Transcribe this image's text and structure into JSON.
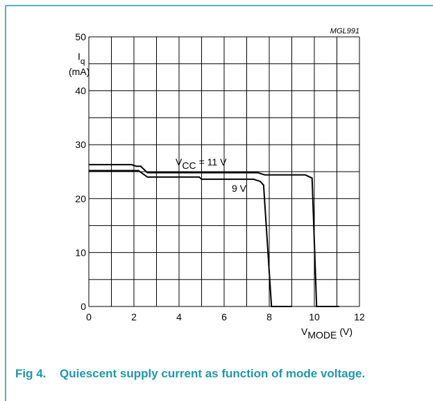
{
  "chart_data": {
    "type": "line",
    "id_label": "MGL991",
    "ylabel": {
      "symbol": "I",
      "subscript": "q",
      "unit": "(mA)"
    },
    "xlabel": {
      "symbol": "V",
      "subscript": "MODE",
      "unit": "(V)"
    },
    "xlim": [
      0,
      12
    ],
    "xticks": [
      0,
      2,
      4,
      6,
      8,
      10,
      12
    ],
    "ylim": [
      0,
      50
    ],
    "yticks": [
      0,
      10,
      20,
      30,
      40,
      50
    ],
    "grid": true,
    "series": [
      {
        "name": {
          "symbol": "V",
          "subscript": "CC",
          "text": "= 11 V"
        },
        "color": "#000000",
        "x": [
          0,
          1.9,
          2.1,
          2.3,
          2.6,
          7.5,
          7.8,
          9.6,
          9.9,
          10.1,
          11.1
        ],
        "values": [
          26.3,
          26.3,
          26,
          26,
          24.8,
          24.8,
          24.4,
          24.4,
          23.8,
          0,
          0
        ]
      },
      {
        "name": "9 V",
        "color": "#000000",
        "x": [
          0,
          2.2,
          2.6,
          4.9,
          5.0,
          7.3,
          7.6,
          7.75,
          8.1,
          9.0
        ],
        "values": [
          25.2,
          25.2,
          24,
          24,
          23.6,
          23.6,
          23.2,
          22.5,
          0,
          0
        ]
      }
    ],
    "caption": {
      "number": "Fig 4.",
      "text": "Quiescent supply current as function of mode voltage."
    }
  }
}
